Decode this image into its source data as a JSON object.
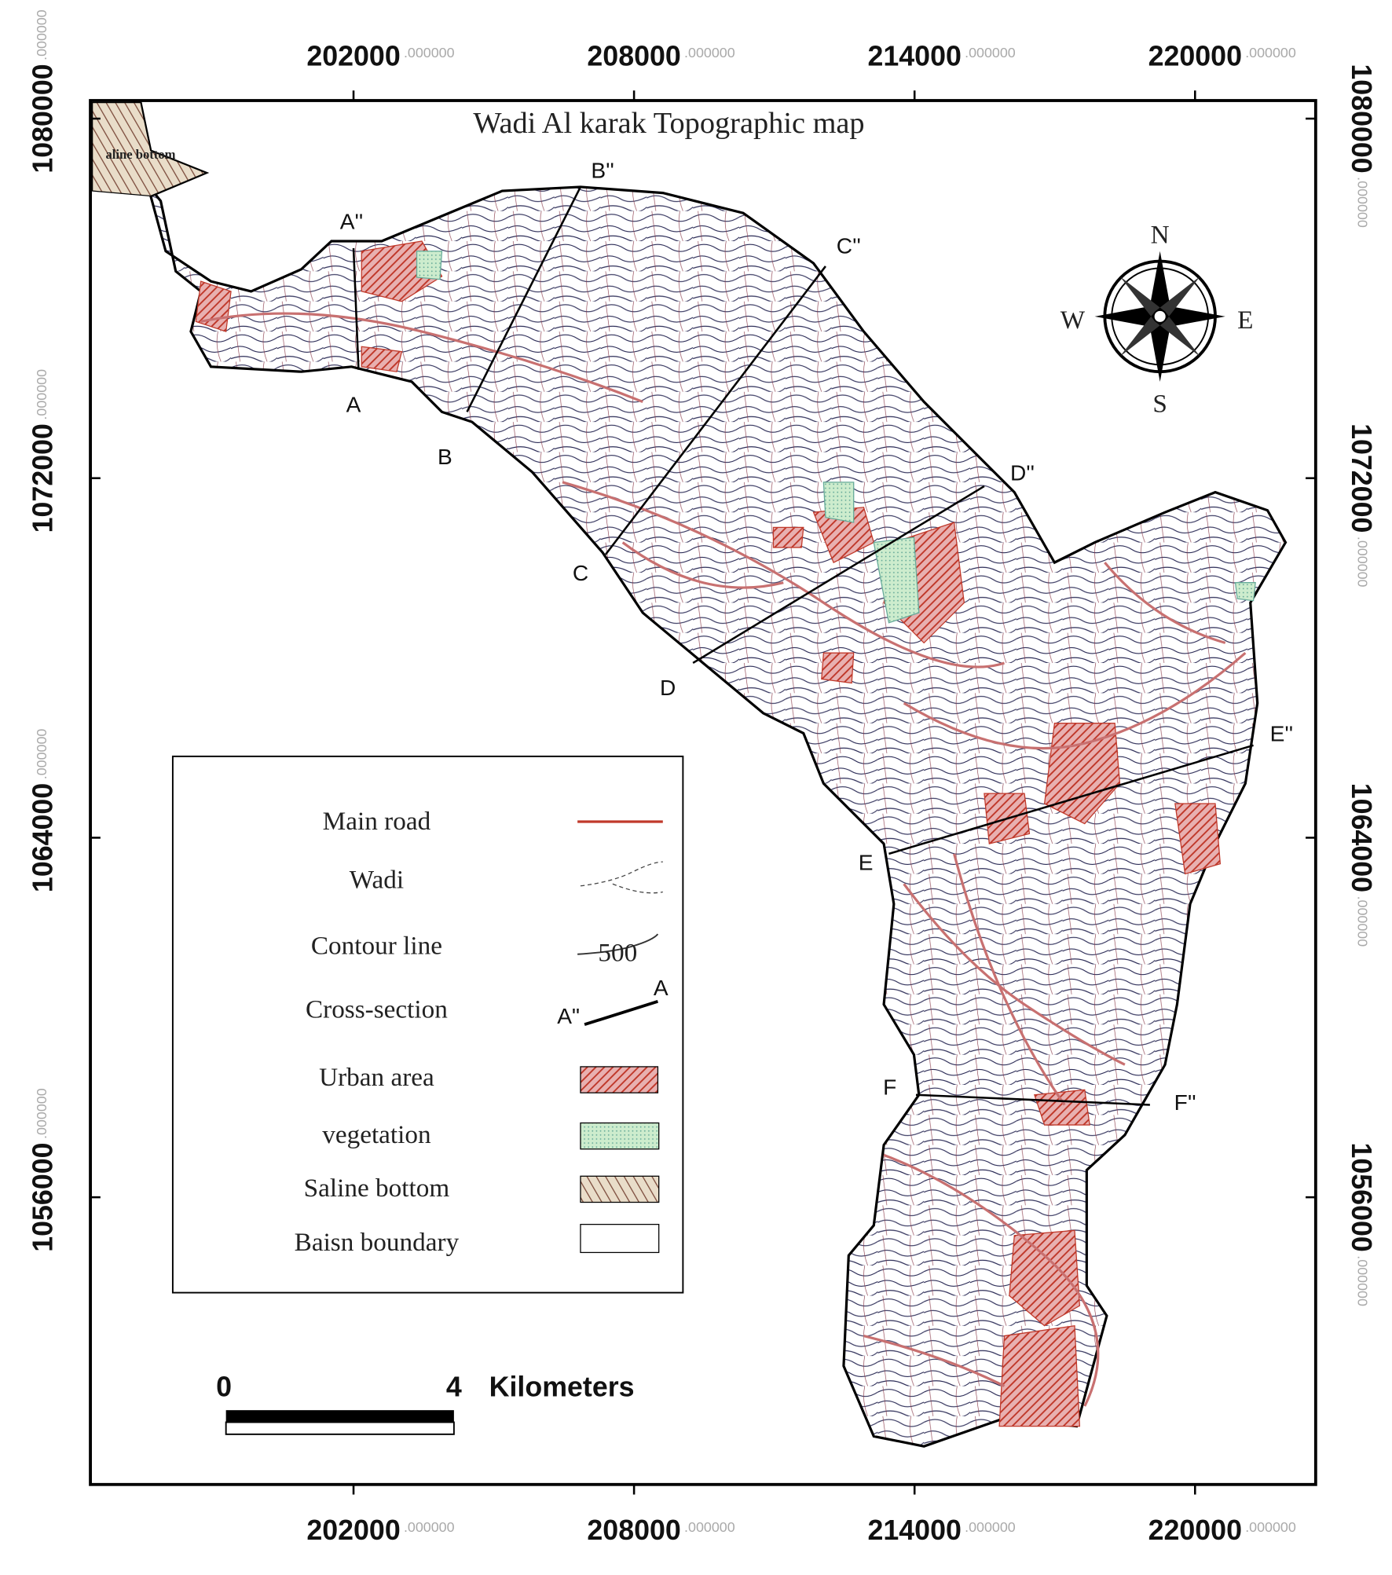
{
  "title": "Wadi Al karak Topographic map",
  "saline_label": "aline bottom",
  "x_ticks": [
    {
      "value": 202000,
      "label": "202000",
      "decimals": ".000000"
    },
    {
      "value": 208000,
      "label": "208000",
      "decimals": ".000000"
    },
    {
      "value": 214000,
      "label": "214000",
      "decimals": ".000000"
    },
    {
      "value": 220000,
      "label": "220000",
      "decimals": ".000000"
    }
  ],
  "y_ticks": [
    {
      "value": 1080000,
      "label": "1080000",
      "decimals": ".000000"
    },
    {
      "value": 1072000,
      "label": "1072000",
      "decimals": ".000000"
    },
    {
      "value": 1064000,
      "label": "1064000",
      "decimals": ".000000"
    },
    {
      "value": 1056000,
      "label": "1056000",
      "decimals": ".000000"
    }
  ],
  "sections": [
    {
      "start": "A''",
      "end": "A"
    },
    {
      "start": "B''",
      "end": "B"
    },
    {
      "start": "C''",
      "end": "C"
    },
    {
      "start": "D''",
      "end": "D"
    },
    {
      "start": "E''",
      "end": "E"
    },
    {
      "start": "F",
      "end": "F''"
    }
  ],
  "compass": {
    "n": "N",
    "s": "S",
    "e": "E",
    "w": "W"
  },
  "legend": [
    {
      "label": "Main road"
    },
    {
      "label": "Wadi"
    },
    {
      "label": "Contour line",
      "symbol_label": "500"
    },
    {
      "label": "Cross-section",
      "symbol_labels": [
        "A\"",
        "A"
      ]
    },
    {
      "label": "Urban area"
    },
    {
      "label": "vegetation"
    },
    {
      "label": "Saline bottom"
    },
    {
      "label": "Baisn boundary"
    }
  ],
  "scale_bar": {
    "start": "0",
    "end": "4",
    "unit": "Kilometers"
  }
}
